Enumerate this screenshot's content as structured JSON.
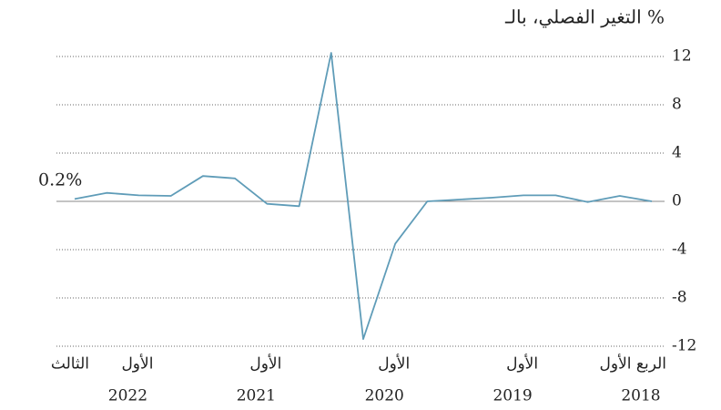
{
  "chart_data": {
    "type": "line",
    "title": "التغير الفصلي، بالـ %",
    "annotation": "0.2%",
    "categories": [
      "الربع الأول",
      null,
      null,
      null,
      "الأول",
      null,
      null,
      null,
      "الأول",
      null,
      null,
      null,
      "الأول",
      null,
      null,
      null,
      "الأول",
      null,
      "الثالث"
    ],
    "years": [
      "2018",
      null,
      null,
      null,
      "2019",
      null,
      null,
      null,
      "2020",
      null,
      null,
      null,
      "2021",
      null,
      null,
      null,
      "2022",
      null,
      null
    ],
    "values": [
      0.0,
      0.45,
      -0.05,
      0.5,
      0.5,
      0.3,
      0.15,
      0.0,
      -3.5,
      -11.4,
      12.3,
      -0.4,
      -0.2,
      1.9,
      2.1,
      0.45,
      0.5,
      0.7,
      0.2
    ],
    "color": "#5f9cb8",
    "ylim": [
      -12,
      12.6
    ],
    "yticks": [
      12,
      8,
      4,
      0,
      -4,
      -8,
      -12
    ],
    "grid": true,
    "x_direction": "right-to-left"
  }
}
